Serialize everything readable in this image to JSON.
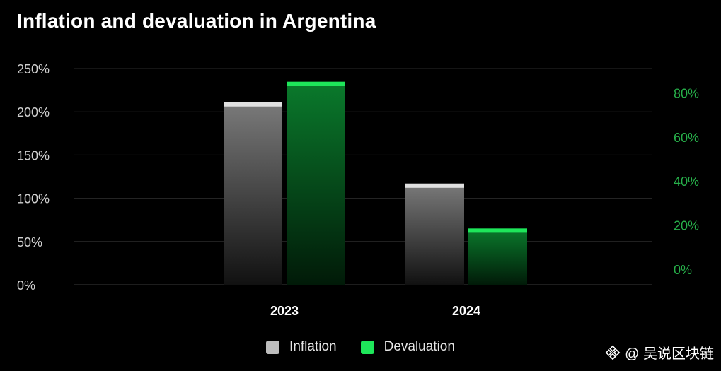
{
  "chart_data": {
    "type": "bar",
    "title": "Inflation and devaluation in Argentina",
    "categories": [
      "2023",
      "2024"
    ],
    "series": [
      {
        "name": "Inflation",
        "axis": "left",
        "values": [
          211,
          117
        ],
        "color": "#bdbdbd"
      },
      {
        "name": "Devaluation",
        "axis": "right",
        "values": [
          85,
          18.5
        ],
        "color": "#1ee65a"
      }
    ],
    "left_axis": {
      "ticks": [
        0,
        50,
        100,
        150,
        200,
        250
      ],
      "tick_labels": [
        "0%",
        "50%",
        "100%",
        "150%",
        "200%",
        "250%"
      ],
      "range": [
        0,
        250
      ]
    },
    "right_axis": {
      "ticks": [
        0,
        20,
        40,
        60,
        80
      ],
      "tick_labels": [
        "0%",
        "20%",
        "40%",
        "60%",
        "80%"
      ],
      "range": [
        -7,
        91
      ],
      "color": "#27b04a"
    },
    "grid": true,
    "legend_position": "bottom-center"
  },
  "watermark": {
    "text": "@ 吴说区块链",
    "icon": "binance-diamond-icon"
  }
}
